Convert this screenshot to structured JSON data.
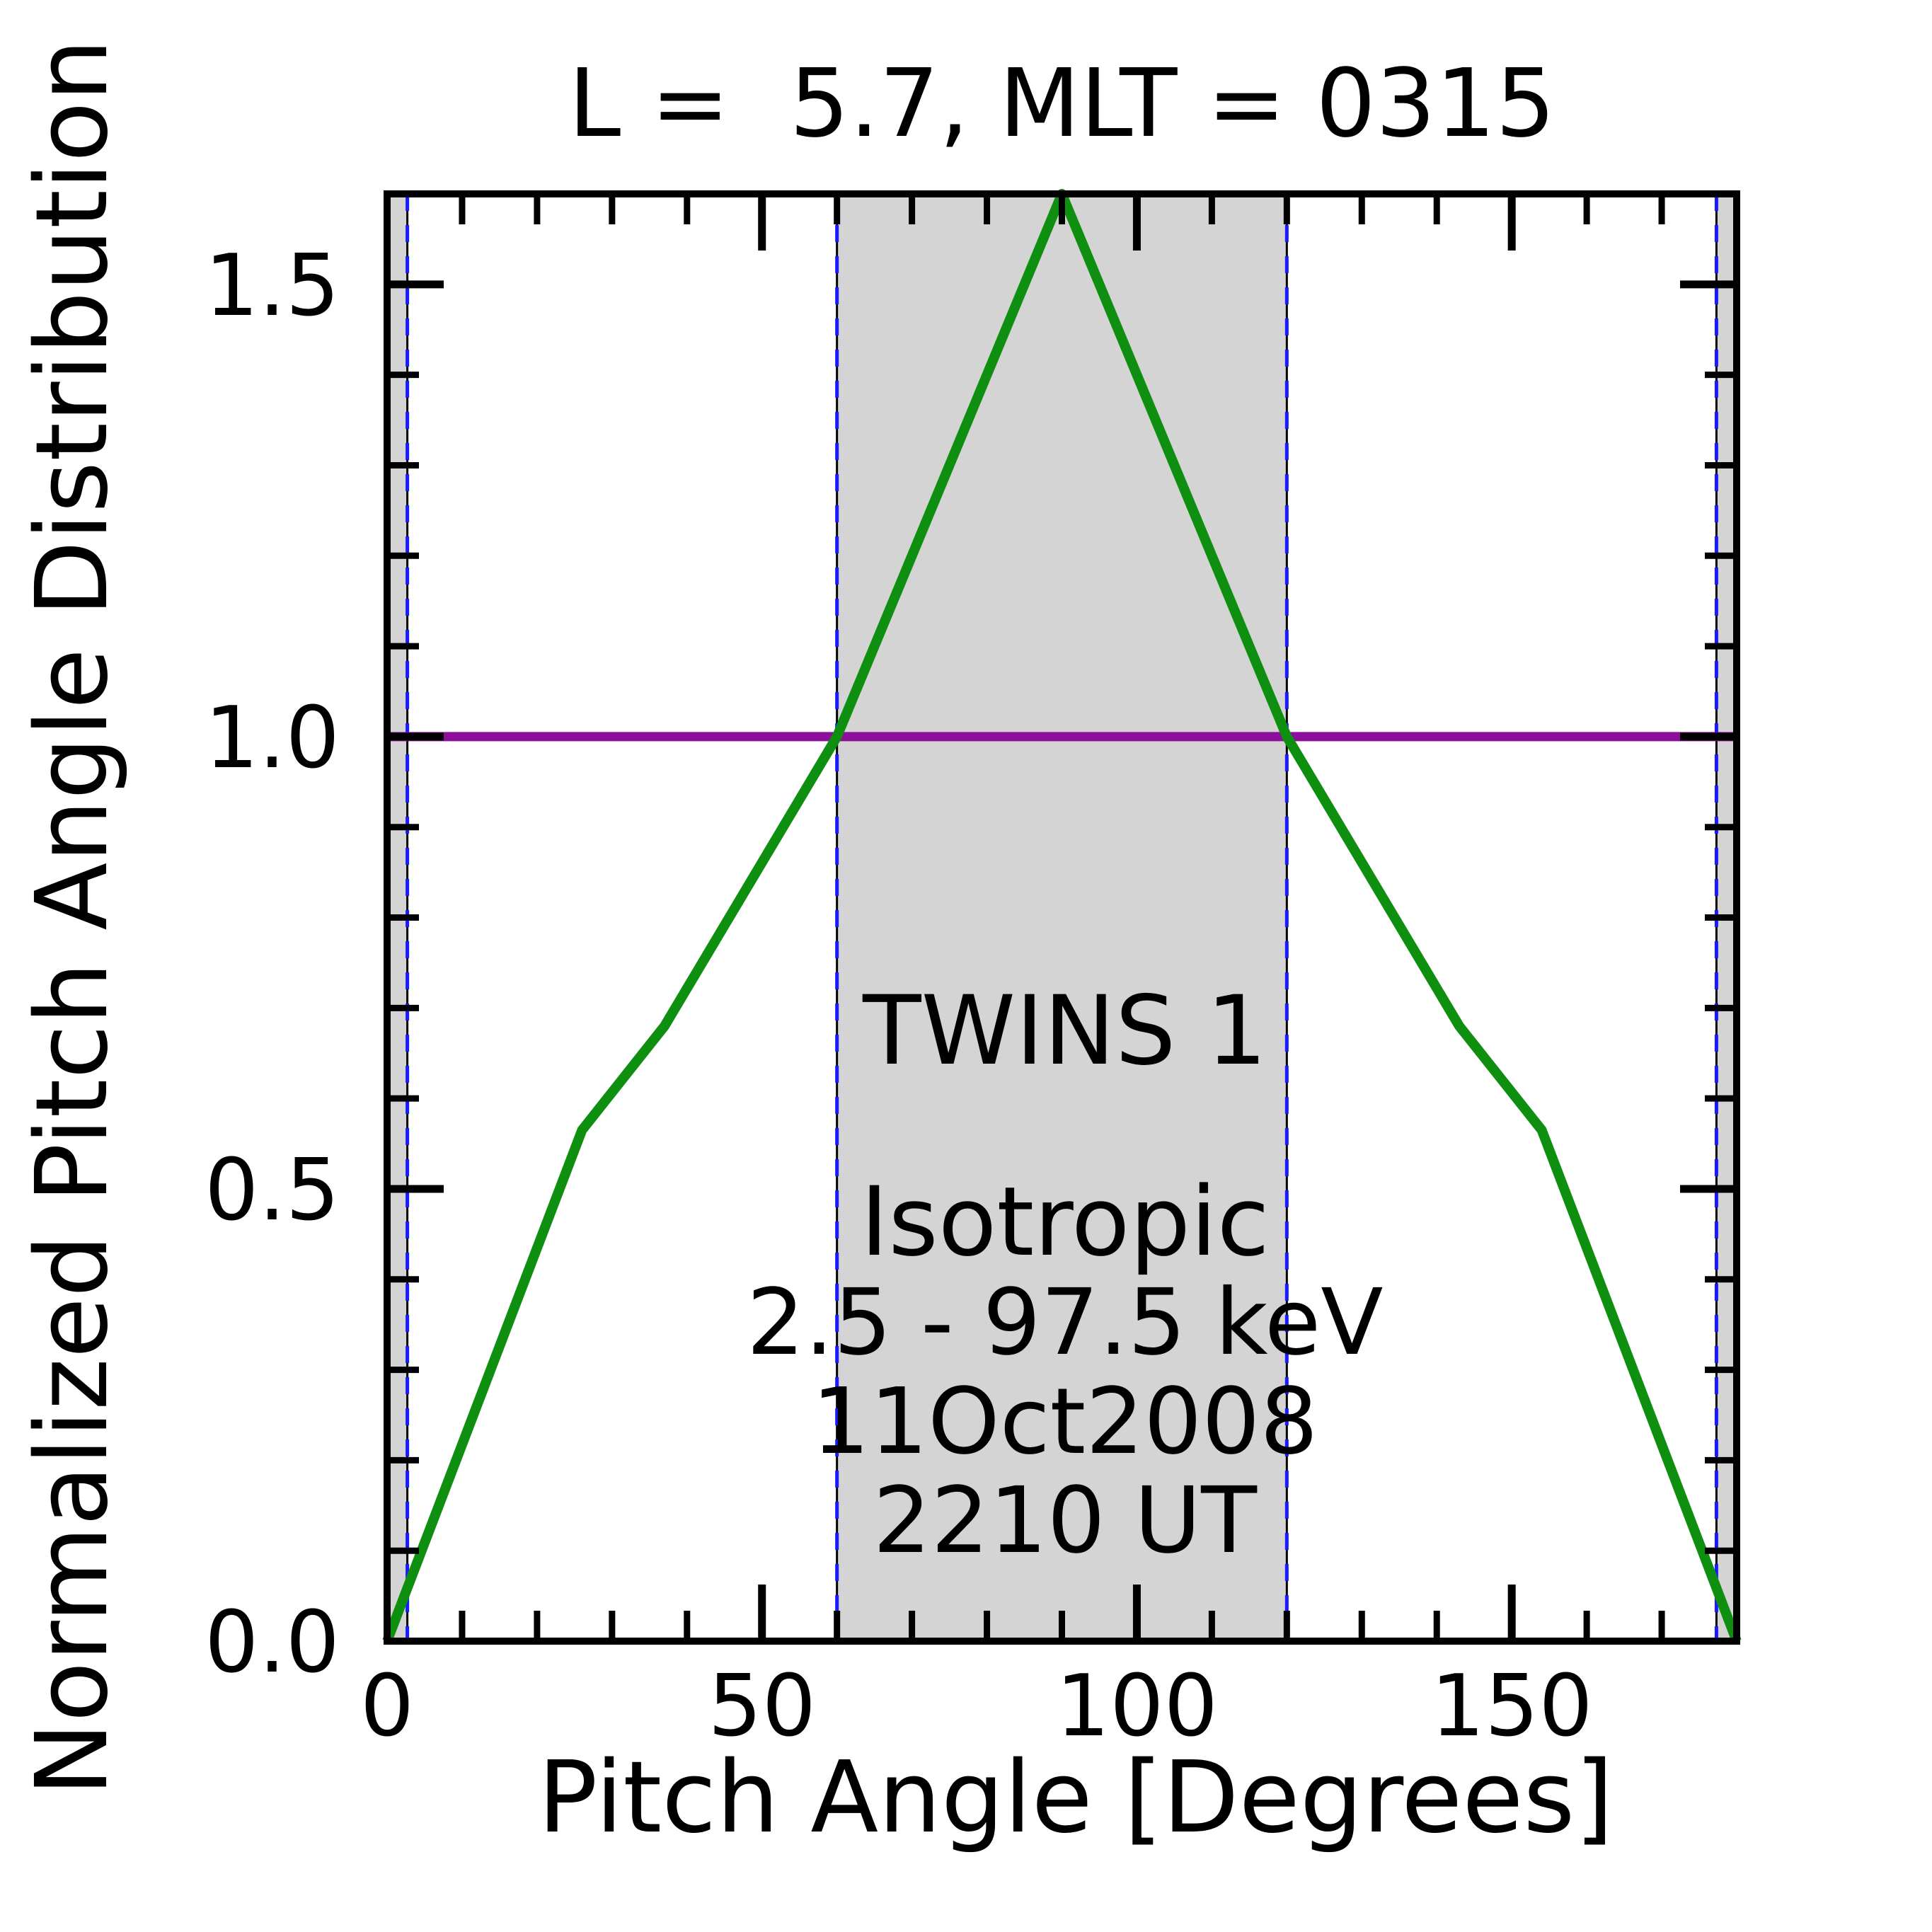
{
  "title": "L =  5.7, MLT = 0315",
  "colors": {
    "green": "#0f8f0f",
    "purple": "#8b0f9b",
    "blue_dash": "#1a1aff",
    "band_gray": "#d4d4d4",
    "axis_black": "#000000",
    "background": "#ffffff"
  },
  "chart_data": {
    "type": "line",
    "title": "L =  5.7, MLT = 0315",
    "xlabel": "Pitch Angle [Degrees]",
    "ylabel": "Normalized Pitch Angle Distribution",
    "xlim": [
      0,
      180
    ],
    "ylim": [
      0.0,
      1.6
    ],
    "x_major_ticks": [
      0,
      50,
      100,
      150
    ],
    "x_major_tick_labels": [
      "0",
      "50",
      "100",
      "150"
    ],
    "x_minor_step": 10,
    "y_major_ticks": [
      0.0,
      0.5,
      1.0,
      1.5
    ],
    "y_major_tick_labels": [
      "0.0",
      "0.5",
      "1.0",
      "1.5"
    ],
    "y_minor_step": 0.1,
    "grid": false,
    "legend_position": "none",
    "shaded_bands_deg": [
      [
        0,
        2.7
      ],
      [
        60,
        120
      ],
      [
        177.3,
        180
      ]
    ],
    "dashed_lines_deg": [
      2.7,
      60,
      120,
      177.3
    ],
    "series": [
      {
        "name": "TWINS 1",
        "color_key": "green",
        "points": [
          [
            0,
            0
          ],
          [
            26,
            0.565
          ],
          [
            37,
            0.68
          ],
          [
            60,
            1.0
          ],
          [
            90,
            1.6
          ],
          [
            120,
            1.0
          ],
          [
            143,
            0.68
          ],
          [
            154,
            0.565
          ],
          [
            180,
            0
          ]
        ]
      },
      {
        "name": "Isotropic",
        "color_key": "purple",
        "points": [
          [
            0,
            1.0
          ],
          [
            180,
            1.0
          ]
        ]
      }
    ],
    "annotations": [
      {
        "text": "TWINS 1",
        "color_key": "green",
        "x_deg": 90.4,
        "y_val": 0.6384,
        "font": 135
      },
      {
        "text": "Isotropic",
        "color_key": "purple",
        "x_deg": 90.4,
        "y_val": 0.4272,
        "font": 135
      },
      {
        "text": "2.5 - 97.5 keV",
        "color_key": "black",
        "x_deg": 90.4,
        "y_val": 0.3177,
        "font": 129
      },
      {
        "text": "11Oct2008",
        "color_key": "black",
        "x_deg": 90.4,
        "y_val": 0.2081,
        "font": 129
      },
      {
        "text": "2210 UT",
        "color_key": "black",
        "x_deg": 90.4,
        "y_val": 0.0986,
        "font": 129
      }
    ]
  }
}
